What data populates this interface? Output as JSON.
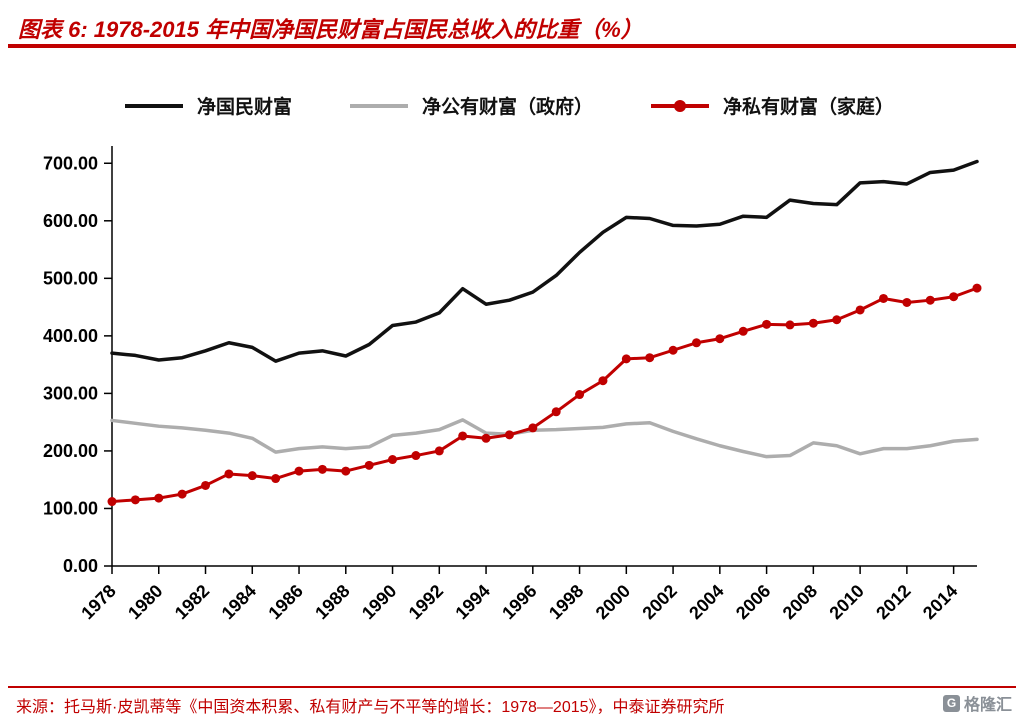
{
  "header": {
    "title": "图表 6:  1978-2015 年中国净国民财富占国民总收入的比重（%）"
  },
  "footer": {
    "source": "来源：托马斯·皮凯蒂等《中国资本积累、私有财产与不平等的增长：1978—2015》，中泰证券研究所",
    "logo_text": "格隆汇",
    "logo_icon_glyph": "G"
  },
  "colors": {
    "accent_red": "#C00000",
    "axis_black": "#000000",
    "series_black": "#111111",
    "series_gray": "#ADADAD",
    "series_red": "#C00000"
  },
  "chart_data": {
    "type": "line",
    "title": "1978-2015 年中国净国民财富占国民总收入的比重（%）",
    "xlabel": "",
    "ylabel": "",
    "grid": false,
    "legend_position": "top",
    "ylim": [
      0,
      730
    ],
    "yticks": [
      0,
      100,
      200,
      300,
      400,
      500,
      600,
      700
    ],
    "ytick_labels": [
      "0.00",
      "100.00",
      "200.00",
      "300.00",
      "400.00",
      "500.00",
      "600.00",
      "700.00"
    ],
    "x": [
      1978,
      1979,
      1980,
      1981,
      1982,
      1983,
      1984,
      1985,
      1986,
      1987,
      1988,
      1989,
      1990,
      1991,
      1992,
      1993,
      1994,
      1995,
      1996,
      1997,
      1998,
      1999,
      2000,
      2001,
      2002,
      2003,
      2004,
      2005,
      2006,
      2007,
      2008,
      2009,
      2010,
      2011,
      2012,
      2013,
      2014,
      2015
    ],
    "xtick_labels": [
      "1978",
      "1980",
      "1982",
      "1984",
      "1986",
      "1988",
      "1990",
      "1992",
      "1994",
      "1996",
      "1998",
      "2000",
      "2002",
      "2004",
      "2006",
      "2008",
      "2010",
      "2012",
      "2014"
    ],
    "series": [
      {
        "name": "净国民财富",
        "color": "#111111",
        "marker": "none",
        "values": [
          370,
          366,
          358,
          362,
          374,
          388,
          380,
          356,
          370,
          374,
          365,
          385,
          418,
          424,
          440,
          482,
          455,
          462,
          476,
          505,
          545,
          580,
          606,
          604,
          592,
          591,
          594,
          608,
          606,
          636,
          630,
          628,
          666,
          668,
          664,
          684,
          688,
          703
        ]
      },
      {
        "name": "净公有财富（政府）",
        "color": "#ADADAD",
        "marker": "none",
        "values": [
          253,
          248,
          243,
          240,
          236,
          231,
          222,
          198,
          204,
          207,
          204,
          207,
          227,
          231,
          237,
          254,
          231,
          229,
          236,
          237,
          239,
          241,
          247,
          249,
          234,
          221,
          209,
          199,
          190,
          192,
          214,
          209,
          195,
          204,
          204,
          209,
          217,
          220
        ]
      },
      {
        "name": "净私有财富（家庭）",
        "color": "#C00000",
        "marker": "circle",
        "values": [
          112,
          115,
          118,
          125,
          140,
          160,
          157,
          152,
          165,
          168,
          165,
          175,
          185,
          192,
          200,
          226,
          222,
          228,
          240,
          268,
          298,
          322,
          360,
          362,
          375,
          388,
          395,
          408,
          420,
          419,
          422,
          428,
          445,
          465,
          458,
          462,
          468,
          483
        ]
      }
    ]
  }
}
